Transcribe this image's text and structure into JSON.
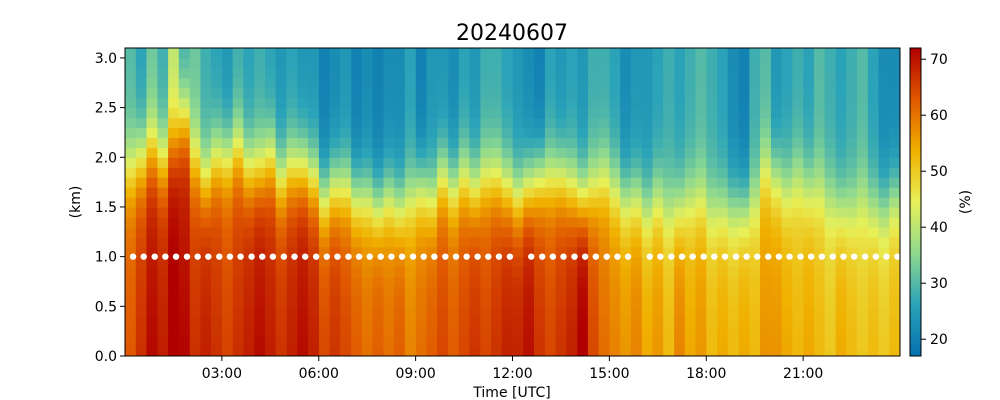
{
  "chart_data": {
    "type": "heatmap",
    "title": "20240607",
    "xlabel": "Time [UTC]",
    "ylabel": "(km)",
    "colorbar_label": "(%)",
    "x_unit": "hours UTC",
    "xlim": [
      0,
      24
    ],
    "ylim": [
      0,
      3.1
    ],
    "x_ticks": [
      3,
      6,
      9,
      12,
      15,
      18,
      21
    ],
    "x_tick_labels": [
      "03:00",
      "06:00",
      "09:00",
      "12:00",
      "15:00",
      "18:00",
      "21:00"
    ],
    "y_ticks": [
      0.0,
      0.5,
      1.0,
      1.5,
      2.0,
      2.5,
      3.0
    ],
    "y_tick_labels": [
      "0.0",
      "0.5",
      "1.0",
      "1.5",
      "2.0",
      "2.5",
      "3.0"
    ],
    "colorbar_range": [
      17,
      72
    ],
    "colorbar_ticks": [
      20,
      30,
      40,
      50,
      60,
      70
    ],
    "colorbar_tick_labels": [
      "20",
      "30",
      "40",
      "50",
      "60",
      "70"
    ],
    "colormap_stops": [
      "#0571b0",
      "#2ba3b8",
      "#8fd98f",
      "#e8f058",
      "#f0b000",
      "#e05800",
      "#b00000"
    ],
    "heights_km": [
      0.05,
      0.15,
      0.25,
      0.35,
      0.45,
      0.55,
      0.65,
      0.75,
      0.85,
      0.95,
      1.05,
      1.15,
      1.25,
      1.35,
      1.45,
      1.55,
      1.65,
      1.75,
      1.85,
      1.95,
      2.05,
      2.15,
      2.25,
      2.35,
      2.45,
      2.55,
      2.65,
      2.75,
      2.85,
      2.95,
      3.05
    ],
    "times_h": [
      0.17,
      0.5,
      0.83,
      1.17,
      1.5,
      1.83,
      2.17,
      2.5,
      2.83,
      3.17,
      3.5,
      3.83,
      4.17,
      4.5,
      4.83,
      5.17,
      5.5,
      5.83,
      6.17,
      6.5,
      6.83,
      7.17,
      7.5,
      7.83,
      8.17,
      8.5,
      8.83,
      9.17,
      9.5,
      9.83,
      10.17,
      10.5,
      10.83,
      11.17,
      11.5,
      11.83,
      12.17,
      12.5,
      12.83,
      13.17,
      13.5,
      13.83,
      14.17,
      14.5,
      14.83,
      15.17,
      15.5,
      15.83,
      16.17,
      16.5,
      16.83,
      17.17,
      17.5,
      17.83,
      18.17,
      18.5,
      18.83,
      19.17,
      19.5,
      19.83,
      20.17,
      20.5,
      20.83,
      21.17,
      21.5,
      21.83,
      22.17,
      22.5,
      22.83,
      23.17,
      23.5,
      23.83
    ],
    "column_profiles": {
      "description_note": "",
      "surface_pct": [
        60,
        64,
        68,
        66,
        70,
        68,
        64,
        66,
        64,
        62,
        64,
        66,
        68,
        66,
        64,
        66,
        68,
        66,
        62,
        64,
        62,
        60,
        58,
        60,
        58,
        60,
        56,
        58,
        60,
        62,
        60,
        62,
        64,
        62,
        64,
        66,
        66,
        68,
        64,
        62,
        64,
        66,
        70,
        62,
        58,
        56,
        54,
        56,
        52,
        54,
        50,
        56,
        52,
        54,
        50,
        52,
        50,
        52,
        50,
        54,
        54,
        52,
        50,
        52,
        50,
        48,
        52,
        50,
        48,
        50,
        48,
        50
      ],
      "top_pct": [
        30,
        26,
        32,
        28,
        40,
        28,
        32,
        28,
        26,
        24,
        28,
        26,
        28,
        26,
        24,
        26,
        24,
        24,
        20,
        22,
        24,
        20,
        22,
        20,
        22,
        22,
        26,
        20,
        24,
        24,
        22,
        26,
        24,
        28,
        28,
        26,
        24,
        22,
        20,
        26,
        24,
        26,
        24,
        28,
        28,
        26,
        22,
        24,
        24,
        26,
        28,
        26,
        28,
        30,
        28,
        26,
        22,
        20,
        28,
        30,
        24,
        26,
        28,
        26,
        30,
        28,
        26,
        28,
        30,
        26,
        22,
        22
      ],
      "transition_km": [
        1.9,
        2.0,
        2.1,
        2.0,
        2.2,
        2.4,
        2.0,
        1.8,
        2.0,
        2.0,
        2.1,
        1.9,
        1.9,
        2.0,
        1.8,
        1.9,
        1.9,
        1.8,
        1.6,
        1.7,
        1.7,
        1.6,
        1.6,
        1.5,
        1.6,
        1.5,
        1.6,
        1.7,
        1.6,
        1.8,
        1.7,
        1.8,
        1.7,
        1.8,
        1.8,
        1.7,
        1.6,
        1.7,
        1.8,
        1.8,
        1.8,
        1.7,
        1.6,
        1.7,
        1.8,
        1.7,
        1.6,
        1.6,
        1.5,
        1.6,
        1.5,
        1.5,
        1.6,
        1.6,
        1.5,
        1.5,
        1.5,
        1.5,
        1.6,
        1.9,
        1.8,
        1.7,
        1.8,
        1.7,
        1.7,
        1.6,
        1.5,
        1.5,
        1.6,
        1.5,
        1.5,
        1.6
      ]
    },
    "marker_series": {
      "y_km": 1.0,
      "color": "#ffffff",
      "x_h": [
        0.25,
        0.58,
        0.92,
        1.25,
        1.58,
        1.92,
        2.25,
        2.58,
        2.92,
        3.25,
        3.58,
        3.92,
        4.25,
        4.58,
        4.92,
        5.25,
        5.58,
        5.92,
        6.25,
        6.58,
        6.92,
        7.25,
        7.58,
        7.92,
        8.25,
        8.58,
        8.92,
        9.25,
        9.58,
        9.92,
        10.25,
        10.58,
        10.92,
        11.25,
        11.58,
        11.92,
        12.58,
        12.92,
        13.25,
        13.58,
        13.92,
        14.25,
        14.58,
        14.92,
        15.25,
        15.58,
        16.25,
        16.58,
        16.92,
        17.25,
        17.58,
        17.92,
        18.25,
        18.58,
        18.92,
        19.25,
        19.58,
        19.92,
        20.25,
        20.58,
        20.92,
        21.25,
        21.58,
        21.92,
        22.25,
        22.58,
        22.92,
        23.25,
        23.58,
        23.92
      ]
    }
  }
}
